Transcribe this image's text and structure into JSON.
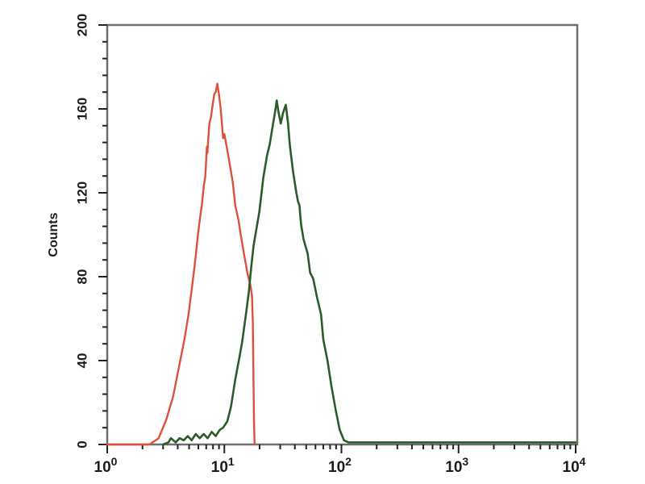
{
  "chart_data": {
    "type": "line",
    "subtype": "flow-cytometry-histogram",
    "title": "",
    "xlabel": "",
    "ylabel": "Counts",
    "x_scale": "log",
    "x_range": [
      1,
      10000
    ],
    "y_range": [
      0,
      200
    ],
    "x_major_tick_labels": [
      "10^0",
      "10^1",
      "10^2",
      "10^3",
      "10^4"
    ],
    "x_tick_exponents": [
      0,
      1,
      2,
      3,
      4
    ],
    "y_major_ticks": [
      0,
      40,
      80,
      120,
      160,
      200
    ],
    "y_minor_step": 8,
    "x_minor_mantissas": [
      2,
      3,
      4,
      5,
      6,
      7,
      8,
      9
    ],
    "grid": false,
    "legend": "none",
    "series": [
      {
        "name": "red-curve",
        "color": "#e04f3c",
        "stroke_width": 2.4,
        "points": [
          [
            1,
            0
          ],
          [
            1.6,
            0
          ],
          [
            2.3,
            0
          ],
          [
            2.75,
            3
          ],
          [
            3.2,
            12
          ],
          [
            3.66,
            23
          ],
          [
            4.1,
            37
          ],
          [
            4.56,
            50
          ],
          [
            4.94,
            62
          ],
          [
            5.35,
            77
          ],
          [
            5.7,
            90
          ],
          [
            5.98,
            101
          ],
          [
            6.27,
            110
          ],
          [
            6.45,
            115
          ],
          [
            6.67,
            123
          ],
          [
            6.88,
            128
          ],
          [
            7.0,
            136
          ],
          [
            7.1,
            142
          ],
          [
            7.17,
            139
          ],
          [
            7.3,
            146
          ],
          [
            7.45,
            153
          ],
          [
            7.68,
            156
          ],
          [
            7.9,
            161
          ],
          [
            8.2,
            167
          ],
          [
            8.45,
            168
          ],
          [
            8.7,
            172
          ],
          [
            9.0,
            167
          ],
          [
            9.3,
            160
          ],
          [
            9.6,
            151
          ],
          [
            9.76,
            146
          ],
          [
            10.0,
            148
          ],
          [
            10.55,
            141
          ],
          [
            11.1,
            134
          ],
          [
            11.8,
            125
          ],
          [
            12.4,
            114
          ],
          [
            13.2,
            107
          ],
          [
            13.8,
            100
          ],
          [
            14.7,
            91
          ],
          [
            15.7,
            82
          ],
          [
            16.7,
            76
          ],
          [
            17.2,
            71
          ],
          [
            17.5,
            58
          ],
          [
            17.7,
            35
          ],
          [
            17.9,
            12
          ],
          [
            18.1,
            1
          ],
          [
            18.3,
            0
          ]
        ]
      },
      {
        "name": "green-curve",
        "color": "#2b5b29",
        "stroke_width": 2.6,
        "points": [
          [
            3.0,
            0
          ],
          [
            3.33,
            1
          ],
          [
            3.5,
            3
          ],
          [
            3.84,
            1
          ],
          [
            4.15,
            3
          ],
          [
            4.5,
            2
          ],
          [
            4.87,
            4
          ],
          [
            5.26,
            2
          ],
          [
            5.7,
            5
          ],
          [
            6.16,
            3
          ],
          [
            6.67,
            5
          ],
          [
            7.2,
            3
          ],
          [
            7.8,
            6
          ],
          [
            8.45,
            4
          ],
          [
            9.15,
            7
          ],
          [
            9.76,
            8
          ],
          [
            10.6,
            11
          ],
          [
            11.4,
            18
          ],
          [
            12.4,
            31
          ],
          [
            13.4,
            41
          ],
          [
            14.2,
            49
          ],
          [
            15.2,
            61
          ],
          [
            16.2,
            73
          ],
          [
            17.0,
            85
          ],
          [
            17.8,
            95
          ],
          [
            18.7,
            102
          ],
          [
            19.9,
            111
          ],
          [
            21.5,
            127
          ],
          [
            23.2,
            138
          ],
          [
            24.4,
            143
          ],
          [
            25.9,
            152
          ],
          [
            27.2,
            159
          ],
          [
            28.0,
            164
          ],
          [
            28.9,
            159
          ],
          [
            30.3,
            153
          ],
          [
            31.7,
            158
          ],
          [
            33.5,
            162
          ],
          [
            35.0,
            153
          ],
          [
            36.2,
            143
          ],
          [
            38.6,
            130
          ],
          [
            41.2,
            120
          ],
          [
            42.5,
            116
          ],
          [
            43.8,
            114
          ],
          [
            45.2,
            105
          ],
          [
            47.4,
            98
          ],
          [
            51.5,
            91
          ],
          [
            54.0,
            82
          ],
          [
            57.4,
            79
          ],
          [
            62.0,
            70
          ],
          [
            67.0,
            62
          ],
          [
            70.0,
            50
          ],
          [
            76.0,
            40
          ],
          [
            82.0,
            28
          ],
          [
            89.0,
            17
          ],
          [
            96.5,
            7
          ],
          [
            105.0,
            2
          ],
          [
            115.0,
            1
          ],
          [
            200.0,
            1
          ],
          [
            400.0,
            1
          ],
          [
            1000.0,
            1
          ],
          [
            10000.0,
            1
          ]
        ]
      }
    ]
  },
  "colors": {
    "background": "#ffffff",
    "frame": "#6e6e6e",
    "tick": "#222222",
    "label": "#1b1b1b",
    "red_series": "#e04f3c",
    "green_series": "#2b5b29"
  }
}
